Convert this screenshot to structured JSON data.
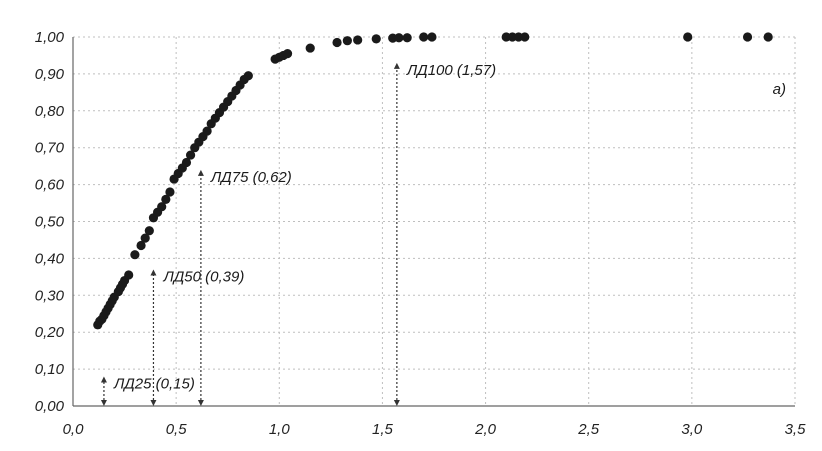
{
  "chart_data": {
    "type": "scatter",
    "title": "",
    "xlabel": "",
    "ylabel": "",
    "xlim": [
      0,
      3.5
    ],
    "ylim": [
      0,
      1.0
    ],
    "grid": true,
    "panel_label": "а)",
    "x_tick_labels": [
      "0,0",
      "0,5",
      "1,0",
      "1,5",
      "2,0",
      "2,5",
      "3,0",
      "3,5"
    ],
    "y_tick_labels": [
      "0,00",
      "0,10",
      "0,20",
      "0,30",
      "0,40",
      "0,50",
      "0,60",
      "0,70",
      "0,80",
      "0,90",
      "1,00"
    ],
    "x_ticks": [
      0,
      0.5,
      1.0,
      1.5,
      2.0,
      2.5,
      3.0,
      3.5
    ],
    "y_ticks": [
      0,
      0.1,
      0.2,
      0.3,
      0.4,
      0.5,
      0.6,
      0.7,
      0.8,
      0.9,
      1.0
    ],
    "points": [
      [
        0.12,
        0.22
      ],
      [
        0.13,
        0.23
      ],
      [
        0.14,
        0.235
      ],
      [
        0.15,
        0.245
      ],
      [
        0.16,
        0.255
      ],
      [
        0.17,
        0.265
      ],
      [
        0.18,
        0.275
      ],
      [
        0.19,
        0.285
      ],
      [
        0.2,
        0.295
      ],
      [
        0.22,
        0.31
      ],
      [
        0.23,
        0.32
      ],
      [
        0.24,
        0.33
      ],
      [
        0.25,
        0.34
      ],
      [
        0.27,
        0.355
      ],
      [
        0.3,
        0.41
      ],
      [
        0.33,
        0.435
      ],
      [
        0.35,
        0.455
      ],
      [
        0.37,
        0.475
      ],
      [
        0.39,
        0.51
      ],
      [
        0.41,
        0.525
      ],
      [
        0.43,
        0.54
      ],
      [
        0.45,
        0.56
      ],
      [
        0.47,
        0.58
      ],
      [
        0.49,
        0.615
      ],
      [
        0.51,
        0.63
      ],
      [
        0.53,
        0.645
      ],
      [
        0.55,
        0.66
      ],
      [
        0.57,
        0.68
      ],
      [
        0.59,
        0.7
      ],
      [
        0.61,
        0.715
      ],
      [
        0.63,
        0.73
      ],
      [
        0.65,
        0.745
      ],
      [
        0.67,
        0.765
      ],
      [
        0.69,
        0.78
      ],
      [
        0.71,
        0.795
      ],
      [
        0.73,
        0.81
      ],
      [
        0.75,
        0.825
      ],
      [
        0.77,
        0.84
      ],
      [
        0.79,
        0.855
      ],
      [
        0.81,
        0.87
      ],
      [
        0.83,
        0.885
      ],
      [
        0.85,
        0.895
      ],
      [
        0.98,
        0.94
      ],
      [
        1.0,
        0.945
      ],
      [
        1.02,
        0.95
      ],
      [
        1.04,
        0.955
      ],
      [
        1.15,
        0.97
      ],
      [
        1.28,
        0.985
      ],
      [
        1.33,
        0.99
      ],
      [
        1.38,
        0.992
      ],
      [
        1.47,
        0.995
      ],
      [
        1.55,
        0.997
      ],
      [
        1.58,
        0.998
      ],
      [
        1.62,
        0.998
      ],
      [
        1.7,
        1.0
      ],
      [
        1.74,
        1.0
      ],
      [
        2.1,
        1.0
      ],
      [
        2.13,
        1.0
      ],
      [
        2.16,
        1.0
      ],
      [
        2.19,
        1.0
      ],
      [
        2.98,
        1.0
      ],
      [
        3.27,
        1.0
      ],
      [
        3.37,
        1.0
      ]
    ],
    "annotations": [
      {
        "label": "ЛД25 (0,15)",
        "x": 0.15,
        "y_from": 0.0,
        "y_to": 0.08,
        "arrow": "up"
      },
      {
        "label": "ЛД50 (0,39)",
        "x": 0.39,
        "y_from": 0.0,
        "y_to": 0.37,
        "arrow": "up"
      },
      {
        "label": "ЛД75 (0,62)",
        "x": 0.62,
        "y_from": 0.0,
        "y_to": 0.64,
        "arrow": "up"
      },
      {
        "label": "ЛД100 (1,57)",
        "x": 1.57,
        "y_from": 0.0,
        "y_to": 0.93,
        "arrow": "up"
      }
    ],
    "colors": {
      "points": "#1a1a1a",
      "grid": "#bfbfbf",
      "axis": "#666666",
      "annotation": "#333333"
    }
  }
}
